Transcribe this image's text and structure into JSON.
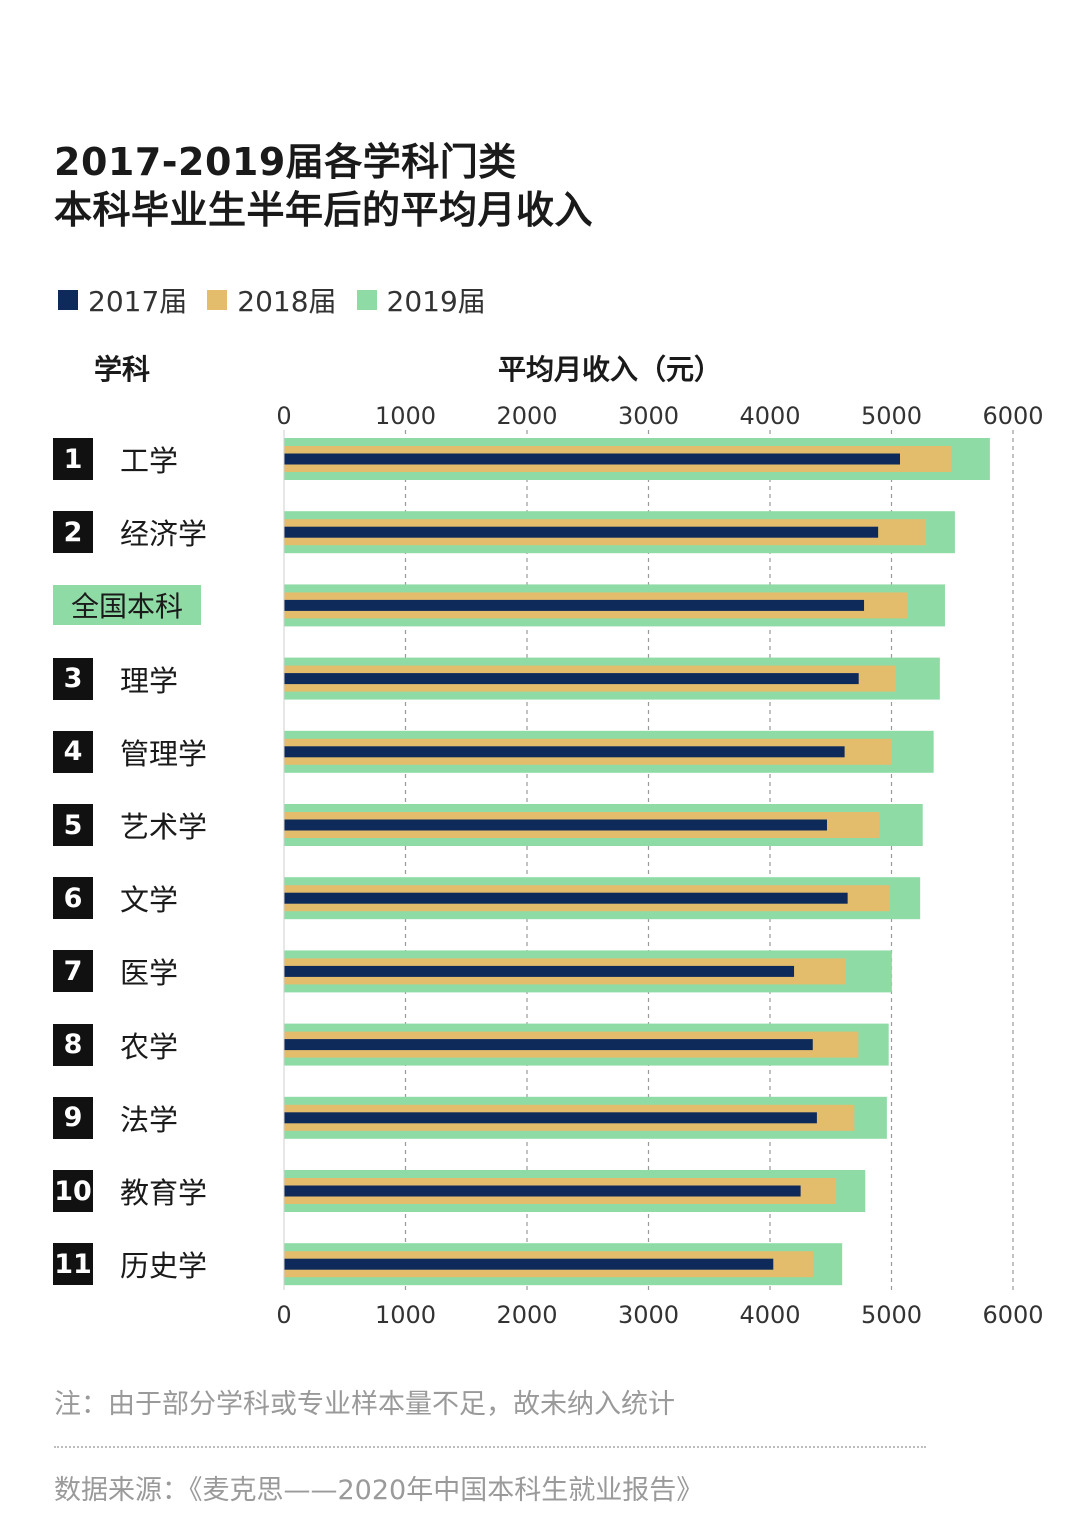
{
  "title": {
    "line1": "2017-2019届各学科门类",
    "line2": "本科毕业生半年后的平均月收入"
  },
  "legend": [
    {
      "label": "2017届",
      "color": "#0e2a5a"
    },
    {
      "label": "2018届",
      "color": "#e3bd6c"
    },
    {
      "label": "2019届",
      "color": "#8fdba6"
    }
  ],
  "headers": {
    "category": "学科",
    "income": "平均月收入（元）"
  },
  "chart_data": {
    "type": "bar",
    "orientation": "horizontal",
    "xlabel": "平均月收入（元）",
    "ylabel": "学科",
    "xlim": [
      0,
      6000
    ],
    "ticks": [
      0,
      1000,
      2000,
      3000,
      4000,
      5000,
      6000
    ],
    "tick_labels": [
      "0",
      "1000",
      "2000",
      "3000",
      "4000",
      "5000",
      "6000"
    ],
    "grid": "dashed vertical",
    "categories": [
      {
        "rank": "1",
        "name": "工学"
      },
      {
        "rank": "2",
        "name": "经济学"
      },
      {
        "rank": "",
        "name": "全国本科",
        "highlight": true
      },
      {
        "rank": "3",
        "name": "理学"
      },
      {
        "rank": "4",
        "name": "管理学"
      },
      {
        "rank": "5",
        "name": "艺术学"
      },
      {
        "rank": "6",
        "name": "文学"
      },
      {
        "rank": "7",
        "name": "医学"
      },
      {
        "rank": "8",
        "name": "农学"
      },
      {
        "rank": "9",
        "name": "法学"
      },
      {
        "rank": "10",
        "name": "教育学"
      },
      {
        "rank": "11",
        "name": "历史学"
      }
    ],
    "series": [
      {
        "name": "2017届",
        "color": "#0e2a5a",
        "values": [
          5070,
          4890,
          4774,
          4730,
          4614,
          4469,
          4639,
          4198,
          4352,
          4386,
          4252,
          4027
        ]
      },
      {
        "name": "2018届",
        "color": "#e3bd6c",
        "values": [
          5494,
          5284,
          5135,
          5037,
          5000,
          4903,
          4985,
          4623,
          4727,
          4694,
          4544,
          4354
        ]
      },
      {
        "name": "2019届",
        "color": "#8fdba6",
        "values": [
          5810,
          5522,
          5440,
          5398,
          5347,
          5257,
          5236,
          5003,
          4977,
          4962,
          4784,
          4594
        ]
      }
    ]
  },
  "footer": {
    "note": "注：由于部分学科或专业样本量不足，故未纳入统计",
    "source": "数据来源：《麦克思——2020年中国本科生就业报告》"
  }
}
